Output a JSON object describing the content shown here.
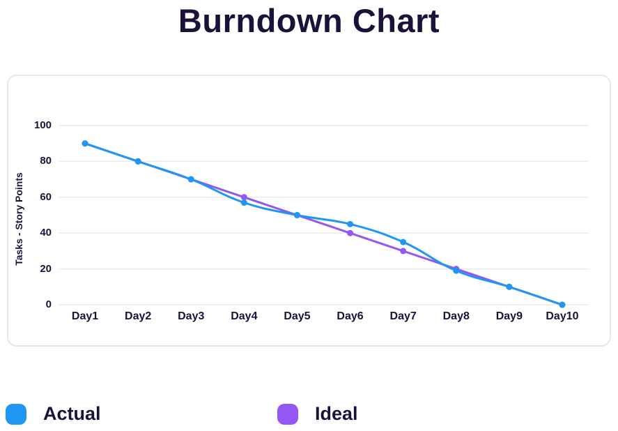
{
  "page": {
    "title": "Burndown Chart"
  },
  "colors": {
    "actual": "#1e96f2",
    "ideal": "#9457f3",
    "text_dark": "#1b1139",
    "grid": "#ebebee",
    "card_border": "#e7e7ea"
  },
  "chart_data": {
    "type": "line",
    "title": "Burndown Chart",
    "x": [
      "Day1",
      "Day2",
      "Day3",
      "Day4",
      "Day5",
      "Day6",
      "Day7",
      "Day8",
      "Day9",
      "Day10"
    ],
    "series": [
      {
        "name": "Actual",
        "color": "#1e96f2",
        "values": [
          90,
          80,
          70,
          57,
          50,
          45,
          35,
          19,
          10,
          0
        ]
      },
      {
        "name": "Ideal",
        "color": "#9457f3",
        "values": [
          90,
          80,
          70,
          60,
          50,
          40,
          30,
          20,
          10,
          0
        ]
      }
    ],
    "xlabel": "",
    "ylabel": "Tasks - Story Points",
    "yticks": [
      0,
      20,
      40,
      60,
      80,
      100
    ],
    "ylim": [
      0,
      100
    ],
    "grid": "horizontal-only",
    "line_tension": 0.4,
    "point_radius": 4.5,
    "line_width": 3,
    "legend_position": "bottom-left"
  },
  "legend": {
    "items": [
      {
        "label": "Actual",
        "color": "#1e96f2"
      },
      {
        "label": "Ideal",
        "color": "#9457f3"
      }
    ]
  }
}
